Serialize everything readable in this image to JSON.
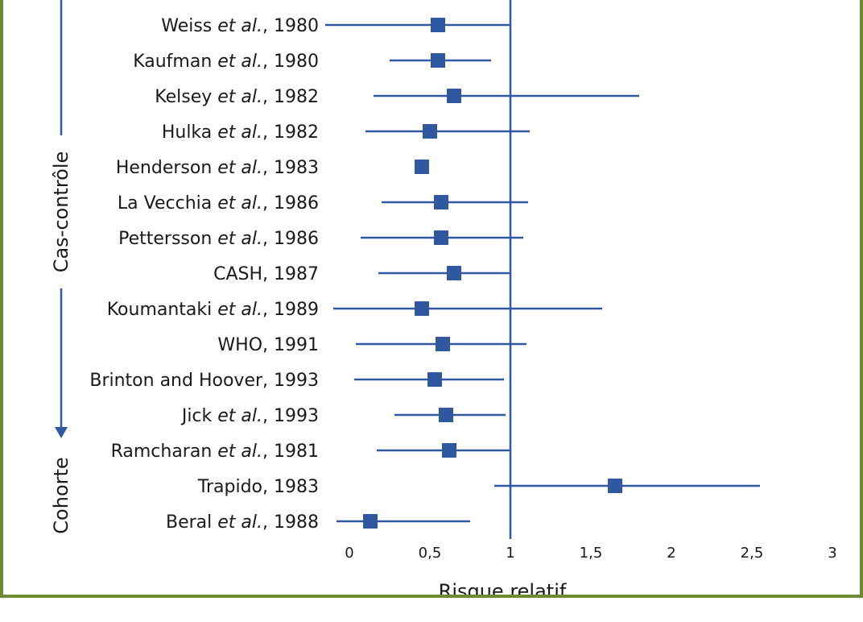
{
  "chart_data": {
    "type": "forest",
    "xlabel": "Risque relatif",
    "xlim": [
      0,
      3
    ],
    "xticks": [
      {
        "value": 0,
        "label": "0"
      },
      {
        "value": 0.5,
        "label": "0,5"
      },
      {
        "value": 1,
        "label": "1"
      },
      {
        "value": 1.5,
        "label": "1,5"
      },
      {
        "value": 2,
        "label": "2"
      },
      {
        "value": 2.5,
        "label": "2,5"
      },
      {
        "value": 3,
        "label": "3"
      }
    ],
    "reference_line": 1,
    "groups": [
      {
        "label": "Cas-contrôle",
        "first": 0,
        "last": 11
      },
      {
        "label": "Cohorte",
        "first": 12,
        "last": 14
      }
    ],
    "studies": [
      {
        "pre": "Weiss ",
        "etal": "et al.",
        "post": ", 1980",
        "rr": 0.55,
        "low": -0.15,
        "high": 1.0
      },
      {
        "pre": "Kaufman ",
        "etal": "et al.",
        "post": ", 1980",
        "rr": 0.55,
        "low": 0.25,
        "high": 0.88
      },
      {
        "pre": "Kelsey ",
        "etal": "et al.",
        "post": ", 1982",
        "rr": 0.65,
        "low": 0.15,
        "high": 1.8
      },
      {
        "pre": "Hulka ",
        "etal": "et al.",
        "post": ", 1982",
        "rr": 0.5,
        "low": 0.1,
        "high": 1.12
      },
      {
        "pre": "Henderson ",
        "etal": "et al.",
        "post": ", 1983",
        "rr": 0.45,
        "low": null,
        "high": null
      },
      {
        "pre": "La Vecchia ",
        "etal": "et al.",
        "post": ", 1986",
        "rr": 0.57,
        "low": 0.2,
        "high": 1.11
      },
      {
        "pre": "Pettersson ",
        "etal": "et al.",
        "post": ", 1986",
        "rr": 0.57,
        "low": 0.07,
        "high": 1.08
      },
      {
        "pre": "CASH, 1987",
        "etal": "",
        "post": "",
        "rr": 0.65,
        "low": 0.18,
        "high": 1.0
      },
      {
        "pre": "Koumantaki ",
        "etal": "et al.",
        "post": ", 1989",
        "rr": 0.45,
        "low": -0.1,
        "high": 1.57
      },
      {
        "pre": "WHO, 1991",
        "etal": "",
        "post": "",
        "rr": 0.58,
        "low": 0.04,
        "high": 1.1
      },
      {
        "pre": "Brinton and Hoover, 1993",
        "etal": "",
        "post": "",
        "rr": 0.53,
        "low": 0.03,
        "high": 0.96
      },
      {
        "pre": "Jick ",
        "etal": "et al.",
        "post": ", 1993",
        "rr": 0.6,
        "low": 0.28,
        "high": 0.97
      },
      {
        "pre": "Ramcharan ",
        "etal": "et al.",
        "post": ", 1981",
        "rr": 0.62,
        "low": 0.17,
        "high": 1.0
      },
      {
        "pre": "Trapido, 1983",
        "etal": "",
        "post": "",
        "rr": 1.65,
        "low": 0.9,
        "high": 2.55
      },
      {
        "pre": "Beral ",
        "etal": "et al.",
        "post": ", 1988",
        "rr": 0.13,
        "low": -0.08,
        "high": 0.75
      }
    ],
    "colors": {
      "marker": "#2f58a0",
      "line": "#2f58a0",
      "text": "#1a1a1a",
      "frame": "#6f8a34"
    }
  }
}
